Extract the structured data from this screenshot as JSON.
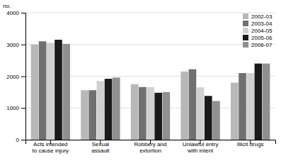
{
  "chart_data": {
    "type": "bar",
    "ylabel": "no.",
    "categories": [
      "Acts intended\nto cause injury",
      "Sexual\nassault",
      "Robbery and\nextortion",
      "Unlawful entry\nwith intent",
      "Illicit drugs"
    ],
    "series": [
      {
        "name": "2002-03",
        "color": "#b8b8b8",
        "values": [
          3000,
          1560,
          1750,
          2150,
          1800
        ]
      },
      {
        "name": "2003-04",
        "color": "#707070",
        "values": [
          3100,
          1560,
          1660,
          2220,
          2100
        ]
      },
      {
        "name": "2004-05",
        "color": "#d0d0d0",
        "values": [
          3050,
          1850,
          1660,
          1650,
          2100
        ]
      },
      {
        "name": "2005-06",
        "color": "#1a1a1a",
        "values": [
          3150,
          1920,
          1480,
          1380,
          2400
        ]
      },
      {
        "name": "2006-07",
        "color": "#909090",
        "values": [
          3020,
          1960,
          1500,
          1220,
          2400
        ]
      }
    ],
    "ylim": [
      0,
      4000
    ],
    "yticks": [
      0,
      1000,
      2000,
      3000,
      4000
    ],
    "grid": true,
    "legend": "upper right"
  }
}
